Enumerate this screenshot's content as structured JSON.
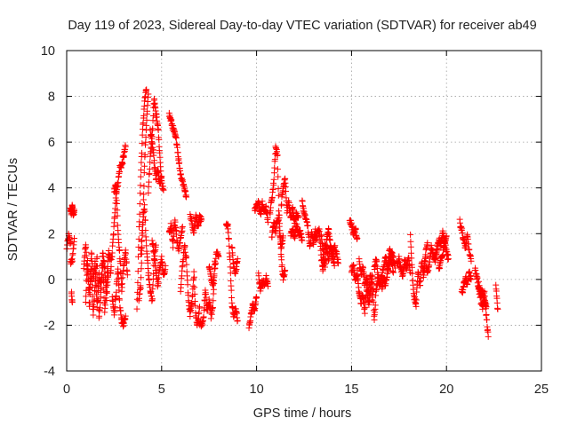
{
  "chart_data": {
    "type": "scatter",
    "title": "Day 119 of 2023, Sidereal Day-to-day VTEC variation (SDTVAR) for receiver ab49",
    "xlabel": "GPS time / hours",
    "ylabel": "SDTVAR / TECUs",
    "xlim": [
      0,
      25
    ],
    "ylim": [
      -4,
      10
    ],
    "xticks": [
      0,
      5,
      10,
      15,
      20,
      25
    ],
    "yticks": [
      -4,
      -2,
      0,
      2,
      4,
      6,
      8,
      10
    ],
    "grid": true,
    "marker": "+",
    "color": "#ff0000",
    "series": [
      {
        "name": "SDTVAR",
        "segments": [
          {
            "x": [
              0.0,
              0.1,
              0.2
            ],
            "y": [
              1.3,
              1.9,
              1.6
            ]
          },
          {
            "x": [
              0.2,
              0.25,
              0.3,
              0.35,
              0.4
            ],
            "y": [
              3.1,
              2.9,
              3.2,
              2.8,
              3.0
            ]
          },
          {
            "x": [
              0.2,
              0.3,
              0.4
            ],
            "y": [
              0.7,
              0.9,
              1.8
            ]
          },
          {
            "x": [
              0.25,
              0.3
            ],
            "y": [
              -0.6,
              -1.0
            ]
          },
          {
            "x": [
              0.9,
              1.0,
              1.1,
              1.2,
              1.3,
              1.4,
              1.5,
              1.6,
              1.7,
              1.8,
              1.9,
              2.0,
              2.1,
              2.2,
              2.3
            ],
            "y": [
              0.6,
              1.5,
              0.3,
              -0.5,
              0.4,
              -1.6,
              -0.2,
              1.0,
              -1.8,
              -0.6,
              0.8,
              -1.4,
              -0.2,
              1.2,
              0.9
            ]
          },
          {
            "x": [
              1.0,
              1.1,
              1.2,
              1.3,
              1.4,
              1.5,
              1.6,
              1.7,
              1.8,
              1.9,
              2.0,
              2.1,
              2.2
            ],
            "y": [
              -0.9,
              0.9,
              -1.3,
              1.2,
              0.0,
              0.8,
              -1.2,
              0.2,
              -0.3,
              1.1,
              0.5,
              -0.8,
              0.3
            ]
          },
          {
            "x": [
              2.3,
              2.4,
              2.5,
              2.6,
              2.7,
              2.8,
              2.9,
              3.0,
              3.1
            ],
            "y": [
              0.2,
              1.2,
              2.4,
              3.8,
              4.2,
              4.9,
              5.0,
              5.4,
              5.8
            ]
          },
          {
            "x": [
              2.4,
              2.5,
              2.6,
              2.7,
              2.8,
              2.9,
              3.0,
              3.1
            ],
            "y": [
              -0.8,
              -1.5,
              -0.6,
              0.4,
              -1.2,
              -1.8,
              -2.0,
              -1.6
            ]
          },
          {
            "x": [
              2.5,
              2.6,
              2.7,
              2.8,
              2.9,
              3.0,
              3.1,
              3.2
            ],
            "y": [
              3.9,
              4.1,
              2.2,
              1.0,
              -0.4,
              0.6,
              1.3,
              0.2
            ]
          },
          {
            "x": [
              3.7,
              3.8,
              3.9,
              4.0,
              4.1,
              4.2
            ],
            "y": [
              -1.4,
              1.8,
              4.5,
              6.5,
              7.8,
              8.3
            ]
          },
          {
            "x": [
              3.8,
              3.9,
              4.0,
              4.1,
              4.2,
              4.3
            ],
            "y": [
              -0.9,
              -0.3,
              2.2,
              5.0,
              6.8,
              8.1
            ]
          },
          {
            "x": [
              3.9,
              4.0,
              4.1,
              4.2,
              4.3,
              4.4,
              4.5,
              4.6,
              4.7
            ],
            "y": [
              1.0,
              2.4,
              3.2,
              1.5,
              0.3,
              -0.4,
              -1.0,
              0.8,
              1.5
            ]
          },
          {
            "x": [
              4.3,
              4.4,
              4.5,
              4.6,
              4.7,
              4.8,
              4.9,
              5.0,
              5.1
            ],
            "y": [
              3.9,
              5.3,
              6.2,
              7.9,
              7.2,
              6.8,
              5.5,
              4.2,
              3.9
            ]
          },
          {
            "x": [
              4.4,
              4.5,
              4.6,
              4.7,
              4.8,
              4.9,
              5.0
            ],
            "y": [
              6.5,
              6.0,
              5.2,
              4.4,
              4.8,
              4.1,
              4.5
            ]
          },
          {
            "x": [
              4.5,
              4.6,
              4.7,
              4.8,
              4.9,
              5.0,
              5.1,
              5.2
            ],
            "y": [
              1.7,
              1.1,
              0.4,
              -0.3,
              0.5,
              0.9,
              0.1,
              0.6
            ]
          },
          {
            "x": [
              5.4,
              5.5,
              5.6,
              5.7,
              5.8,
              5.9,
              6.0,
              6.1,
              6.2,
              6.3
            ],
            "y": [
              7.2,
              6.9,
              6.6,
              6.3,
              6.0,
              5.2,
              4.6,
              4.3,
              4.0,
              3.6
            ]
          },
          {
            "x": [
              5.4,
              5.5,
              5.6,
              5.7,
              5.8,
              5.9,
              6.0,
              6.1
            ],
            "y": [
              2.0,
              2.4,
              1.5,
              2.6,
              1.8,
              1.2,
              1.9,
              2.3
            ]
          },
          {
            "x": [
              6.0,
              6.1,
              6.2,
              6.3,
              6.4,
              6.5,
              6.6,
              6.7,
              6.8,
              6.9,
              7.0
            ],
            "y": [
              -0.4,
              0.6,
              1.5,
              0.9,
              -0.8,
              -1.5,
              -1.0,
              0.3,
              -1.7,
              -2.0,
              -1.2
            ]
          },
          {
            "x": [
              6.5,
              6.6,
              6.7,
              6.8,
              6.9,
              7.0,
              7.1
            ],
            "y": [
              2.8,
              2.5,
              2.0,
              2.9,
              2.3,
              2.7,
              2.6
            ]
          },
          {
            "x": [
              7.0,
              7.1,
              7.2,
              7.3,
              7.4,
              7.5,
              7.6,
              7.7,
              7.8
            ],
            "y": [
              -1.9,
              -2.1,
              -1.7,
              -0.5,
              -1.4,
              -0.9,
              -1.6,
              -1.2,
              0.8
            ]
          },
          {
            "x": [
              7.5,
              7.6,
              7.7,
              7.8,
              7.9,
              8.0
            ],
            "y": [
              0.6,
              0.1,
              -0.3,
              0.5,
              1.2,
              1.0
            ]
          },
          {
            "x": [
              8.4,
              8.5,
              8.6,
              8.7,
              8.8,
              8.9,
              9.0
            ],
            "y": [
              2.4,
              2.3,
              0.8,
              -1.1,
              -1.6,
              -1.3,
              -1.8
            ]
          },
          {
            "x": [
              8.7,
              8.8,
              8.9,
              9.0
            ],
            "y": [
              1.4,
              0.5,
              0.3,
              0.9
            ]
          },
          {
            "x": [
              9.6,
              9.7,
              9.8,
              9.9,
              10.0
            ],
            "y": [
              -2.0,
              -1.6,
              -1.1,
              -1.3,
              -0.8
            ]
          },
          {
            "x": [
              9.9,
              10.0,
              10.1,
              10.2,
              10.3,
              10.4,
              10.5,
              10.6
            ],
            "y": [
              3.0,
              3.2,
              3.4,
              2.8,
              3.3,
              3.0,
              3.1,
              2.5
            ]
          },
          {
            "x": [
              10.1,
              10.2,
              10.3,
              10.4,
              10.5,
              10.6
            ],
            "y": [
              0.2,
              -0.4,
              -0.1,
              -0.2,
              0.1,
              -0.3
            ]
          },
          {
            "x": [
              10.7,
              10.8,
              10.9,
              11.0,
              11.1,
              11.2,
              11.3,
              11.4
            ],
            "y": [
              2.9,
              3.5,
              4.2,
              5.8,
              5.4,
              2.2,
              1.3,
              1.9
            ]
          },
          {
            "x": [
              10.8,
              10.9,
              11.0,
              11.1,
              11.2,
              11.3,
              11.4,
              11.5
            ],
            "y": [
              1.8,
              2.5,
              2.1,
              2.6,
              2.8,
              0.9,
              0.1,
              0.4
            ]
          },
          {
            "x": [
              11.3,
              11.4,
              11.5,
              11.6,
              11.7,
              11.8,
              11.9,
              12.0,
              12.1,
              12.2
            ],
            "y": [
              3.3,
              4.0,
              4.5,
              3.0,
              3.4,
              2.6,
              3.1,
              2.4,
              2.9,
              2.7
            ]
          },
          {
            "x": [
              11.8,
              11.9,
              12.0,
              12.1,
              12.2,
              12.3,
              12.4
            ],
            "y": [
              2.0,
              2.2,
              1.8,
              2.4,
              2.0,
              2.1,
              1.7
            ]
          },
          {
            "x": [
              12.4,
              12.5,
              12.6,
              12.7,
              12.8,
              12.9,
              13.0,
              13.1
            ],
            "y": [
              3.4,
              2.9,
              2.6,
              2.3,
              1.4,
              2.0,
              1.6,
              2.2
            ]
          },
          {
            "x": [
              13.1,
              13.2,
              13.3,
              13.4,
              13.5,
              13.6,
              13.7,
              13.8,
              13.9,
              14.0,
              14.1
            ],
            "y": [
              1.7,
              2.0,
              2.3,
              1.0,
              0.4,
              1.5,
              1.3,
              0.8,
              1.6,
              1.1,
              0.6
            ]
          },
          {
            "x": [
              13.4,
              13.5,
              13.6,
              13.7,
              13.8,
              13.9,
              14.0,
              14.1,
              14.2,
              14.3
            ],
            "y": [
              2.0,
              1.1,
              0.6,
              1.8,
              2.2,
              1.4,
              0.9,
              1.5,
              1.2,
              0.7
            ]
          },
          {
            "x": [
              14.9,
              15.0,
              15.1,
              15.2,
              15.3
            ],
            "y": [
              2.6,
              2.4,
              2.0,
              2.2,
              1.8
            ]
          },
          {
            "x": [
              15.0,
              15.1,
              15.2,
              15.3,
              15.4,
              15.5,
              15.6,
              15.7,
              15.8,
              15.9,
              16.0,
              16.1,
              16.2,
              16.3,
              16.4
            ],
            "y": [
              0.4,
              0.6,
              -0.1,
              0.3,
              -0.6,
              -1.0,
              -0.7,
              -1.4,
              -0.3,
              -1.1,
              -0.5,
              0.2,
              -1.8,
              -0.4,
              0.1
            ]
          },
          {
            "x": [
              15.4,
              15.5,
              15.6,
              15.7,
              15.8,
              15.9,
              16.0,
              16.1
            ],
            "y": [
              0.9,
              0.2,
              0.5,
              -0.2,
              0.1,
              -0.6,
              0.3,
              -0.9
            ]
          },
          {
            "x": [
              16.2,
              16.3,
              16.4,
              16.5,
              16.6,
              16.7,
              16.8,
              16.9,
              17.0,
              17.1,
              17.2
            ],
            "y": [
              0.5,
              0.9,
              0.1,
              -0.3,
              0.2,
              0.6,
              1.0,
              0.4,
              1.4,
              0.8,
              0.3
            ]
          },
          {
            "x": [
              16.6,
              16.7,
              16.8,
              16.9,
              17.0,
              17.1,
              17.2,
              17.3
            ],
            "y": [
              -0.4,
              0.0,
              -0.2,
              0.3,
              0.7,
              1.2,
              0.9,
              0.5
            ]
          },
          {
            "x": [
              17.4,
              17.5,
              17.6,
              17.7,
              17.8,
              17.9,
              18.0,
              18.1
            ],
            "y": [
              0.6,
              0.9,
              0.4,
              0.2,
              0.8,
              0.5,
              1.0,
              0.3
            ]
          },
          {
            "x": [
              18.1,
              18.2,
              18.3,
              18.4,
              18.5,
              18.6,
              18.7,
              18.8,
              18.9,
              19.0
            ],
            "y": [
              1.9,
              0.2,
              -0.8,
              -1.1,
              0.4,
              -0.3,
              0.8,
              0.1,
              1.2,
              1.6
            ]
          },
          {
            "x": [
              18.8,
              18.9,
              19.0,
              19.1,
              19.2,
              19.3,
              19.4,
              19.5
            ],
            "y": [
              0.5,
              0.9,
              0.2,
              0.7,
              1.4,
              1.1,
              0.8,
              1.5
            ]
          },
          {
            "x": [
              19.4,
              19.5,
              19.6,
              19.7,
              19.8,
              19.9,
              20.0,
              20.1
            ],
            "y": [
              1.0,
              1.3,
              1.8,
              1.5,
              2.0,
              1.7,
              1.2,
              0.9
            ]
          },
          {
            "x": [
              19.6,
              19.7,
              19.8,
              19.9,
              20.0
            ],
            "y": [
              0.4,
              0.8,
              1.1,
              1.6,
              1.9
            ]
          },
          {
            "x": [
              20.7,
              20.8,
              20.9,
              21.0,
              21.1,
              21.2,
              21.3
            ],
            "y": [
              2.5,
              2.2,
              1.7,
              1.4,
              1.9,
              1.2,
              0.8
            ]
          },
          {
            "x": [
              20.8,
              20.9,
              21.0,
              21.1,
              21.2,
              21.3
            ],
            "y": [
              -0.6,
              -0.3,
              0.1,
              -0.2,
              0.3,
              0.0
            ]
          },
          {
            "x": [
              21.5,
              21.6,
              21.7,
              21.8,
              21.9,
              22.0,
              22.1,
              22.2
            ],
            "y": [
              0.5,
              0.1,
              -0.4,
              -0.9,
              -1.3,
              -0.6,
              -1.6,
              -2.5
            ]
          },
          {
            "x": [
              21.7,
              21.8,
              21.9,
              22.0,
              22.1
            ],
            "y": [
              -0.2,
              -0.7,
              -0.5,
              -1.0,
              -1.2
            ]
          },
          {
            "x": [
              22.6,
              22.7
            ],
            "y": [
              -0.2,
              -1.3
            ]
          }
        ]
      }
    ]
  }
}
